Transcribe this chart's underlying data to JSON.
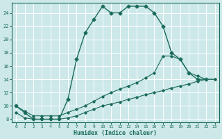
{
  "xlabel": "Humidex (Indice chaleur)",
  "background_color": "#cde8e8",
  "grid_color": "#b0d8d8",
  "line_color": "#1a6b5a",
  "xlim": [
    -0.5,
    23.5
  ],
  "ylim": [
    7.5,
    25.5
  ],
  "xticks": [
    0,
    1,
    2,
    3,
    4,
    5,
    6,
    7,
    8,
    9,
    10,
    11,
    12,
    13,
    14,
    15,
    16,
    17,
    18,
    19,
    20,
    21,
    22,
    23
  ],
  "yticks": [
    8,
    10,
    12,
    14,
    16,
    18,
    20,
    22,
    24
  ],
  "curve_main_x": [
    0,
    1,
    2,
    3,
    4,
    5,
    6,
    7,
    8,
    9,
    10,
    11,
    12,
    13,
    14,
    15,
    16,
    17,
    18,
    19,
    20,
    21,
    22
  ],
  "curve_main_y": [
    10,
    9,
    8,
    8,
    8,
    8,
    11,
    17,
    21,
    23,
    25,
    24,
    24,
    25,
    25,
    25,
    24,
    22,
    18,
    17,
    15,
    14,
    14
  ],
  "curve_low_x": [
    0,
    1,
    2,
    3,
    4,
    5,
    6,
    7,
    8,
    9,
    10,
    11,
    12,
    13,
    14,
    15,
    16,
    17,
    18,
    19,
    20,
    21,
    22,
    23
  ],
  "curve_low_y": [
    9,
    8.2,
    8,
    8,
    8,
    8,
    8.2,
    8.5,
    9,
    9.5,
    10,
    10.3,
    10.6,
    11,
    11.3,
    11.7,
    12,
    12.3,
    12.7,
    13,
    13.3,
    13.7,
    14,
    14
  ],
  "curve_hi_x": [
    0,
    1,
    2,
    3,
    4,
    5,
    6,
    7,
    8,
    9,
    10,
    11,
    12,
    13,
    14,
    15,
    16,
    17,
    18,
    19,
    20,
    21,
    22,
    23
  ],
  "curve_hi_y": [
    10,
    9.2,
    8.5,
    8.5,
    8.5,
    8.5,
    9,
    9.5,
    10,
    10.7,
    11.4,
    12,
    12.5,
    13,
    13.5,
    14.2,
    15,
    17.5,
    17.5,
    17,
    15,
    14.5,
    14,
    14
  ]
}
